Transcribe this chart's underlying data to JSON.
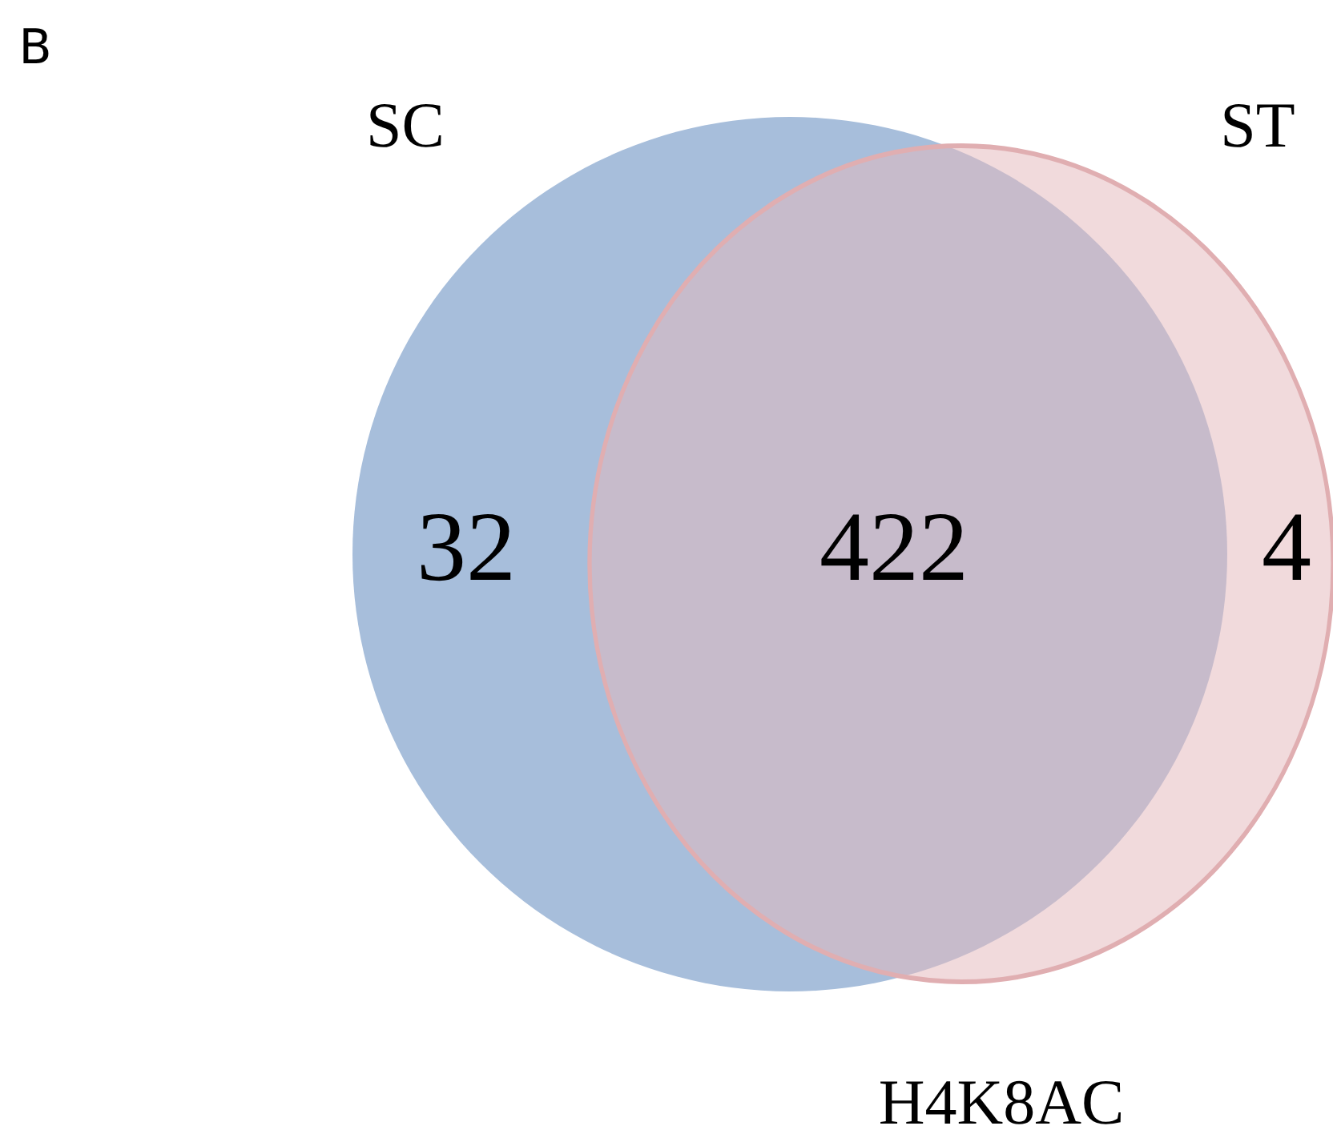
{
  "chart_data": {
    "type": "other",
    "xlabel": "H4K8AC",
    "categories": [
      null,
      null,
      null
    ],
    "values": [
      32,
      422,
      4
    ],
    "data_labels": true,
    "annotations": [
      "B",
      "SC",
      "ST"
    ]
  }
}
